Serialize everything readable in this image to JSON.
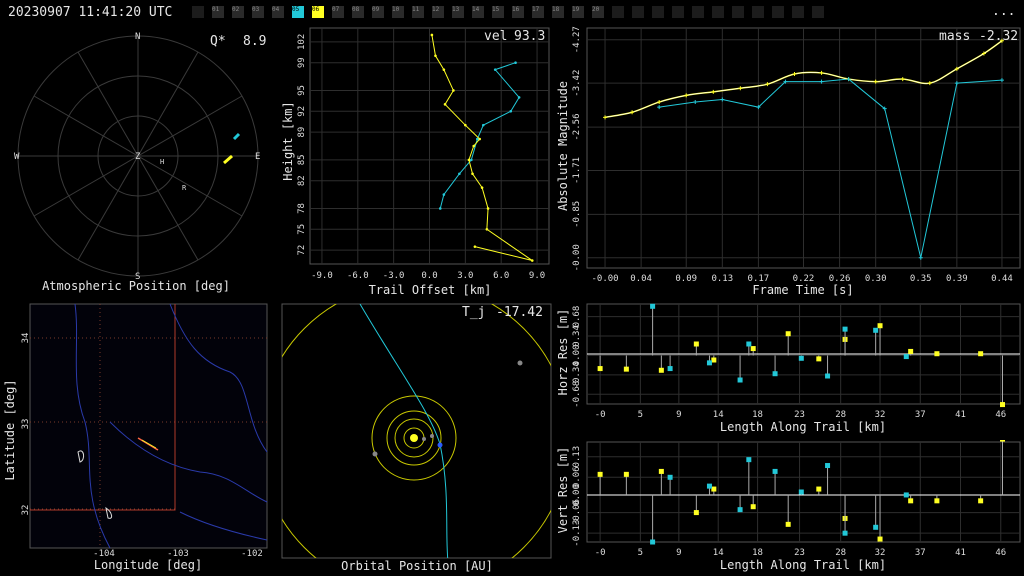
{
  "header": {
    "timestamp": "20230907 11:41:20 UTC",
    "menu": "...",
    "cameras": [
      {
        "label": "",
        "state": "dark"
      },
      {
        "label": "01",
        "state": "off"
      },
      {
        "label": "02",
        "state": "off"
      },
      {
        "label": "03",
        "state": "off"
      },
      {
        "label": "04",
        "state": "off"
      },
      {
        "label": "05",
        "state": "cyan"
      },
      {
        "label": "06",
        "state": "yellow"
      },
      {
        "label": "07",
        "state": "off"
      },
      {
        "label": "08",
        "state": "off"
      },
      {
        "label": "09",
        "state": "off"
      },
      {
        "label": "10",
        "state": "off"
      },
      {
        "label": "11",
        "state": "off"
      },
      {
        "label": "12",
        "state": "off"
      },
      {
        "label": "13",
        "state": "off"
      },
      {
        "label": "14",
        "state": "off"
      },
      {
        "label": "15",
        "state": "off"
      },
      {
        "label": "16",
        "state": "off"
      },
      {
        "label": "17",
        "state": "off"
      },
      {
        "label": "18",
        "state": "off"
      },
      {
        "label": "19",
        "state": "off"
      },
      {
        "label": "20",
        "state": "off"
      },
      {
        "label": "",
        "state": "dark"
      },
      {
        "label": "",
        "state": "dark"
      },
      {
        "label": "",
        "state": "dark"
      },
      {
        "label": "",
        "state": "dark"
      },
      {
        "label": "",
        "state": "dark"
      },
      {
        "label": "",
        "state": "dark"
      },
      {
        "label": "",
        "state": "dark"
      },
      {
        "label": "",
        "state": "dark"
      },
      {
        "label": "",
        "state": "dark"
      },
      {
        "label": "",
        "state": "dark"
      },
      {
        "label": "",
        "state": "dark"
      }
    ]
  },
  "colors": {
    "cyan": "#22c8d8",
    "yellow": "#ffff22",
    "blue": "#2a5cff",
    "grid": "#3a3a3a"
  },
  "atmos": {
    "label": "Atmospheric Position [deg]",
    "q_label": "Q*",
    "q_value": "8.9",
    "compass": {
      "n": "N",
      "s": "S",
      "e": "E",
      "w": "W",
      "z": "Z"
    },
    "markers": {
      "h": "H",
      "r": "R"
    }
  },
  "height_plot": {
    "ylabel": "Height [km]",
    "xlabel": "Trail Offset [km]",
    "stat_label": "vel",
    "stat_value": "93.3",
    "yticks": [
      "72",
      "75",
      "78",
      "82",
      "85",
      "89",
      "92",
      "95",
      "99",
      "102"
    ],
    "xticks": [
      "-9.0",
      "-6.0",
      "-3.0",
      "0.0",
      "3.0",
      "6.0",
      "9.0"
    ]
  },
  "mag_plot": {
    "ylabel": "Absolute Magnitude",
    "xlabel": "Frame Time [s]",
    "stat_label": "mass",
    "stat_value": "-2.32",
    "yticks": [
      "-4.27",
      "-3.42",
      "-2.56",
      "-1.71",
      "-0.85",
      "-0.00"
    ],
    "xticks": [
      "-0.00",
      "0.04",
      "0.09",
      "0.13",
      "0.17",
      "0.22",
      "0.26",
      "0.30",
      "0.35",
      "0.39",
      "0.44"
    ]
  },
  "map_plot": {
    "ylabel": "Latitude [deg]",
    "xlabel": "Longitude [deg]",
    "yticks": [
      "34",
      "33",
      "32"
    ],
    "xticks": [
      "-104",
      "-103",
      "-102"
    ]
  },
  "orbit_plot": {
    "xlabel": "Orbital Position [AU]",
    "stat_label": "T_j",
    "stat_value": "-17.42"
  },
  "horz_res": {
    "ylabel": "Horz Res [m]",
    "xlabel": "Length Along Trail [km]",
    "yticks": [
      "0.68",
      "0.34",
      "0.00",
      "-0.34",
      "-0.68"
    ],
    "xticks": [
      "-0",
      "5",
      "9",
      "14",
      "18",
      "23",
      "28",
      "32",
      "37",
      "41",
      "46"
    ]
  },
  "vert_res": {
    "ylabel": "Vert Res [m]",
    "xlabel": "Length Along Trail [km]",
    "yticks": [
      "0.13",
      "0.06",
      "0.00",
      "-0.06",
      "-0.13"
    ],
    "xticks": [
      "-0",
      "5",
      "9",
      "14",
      "18",
      "23",
      "28",
      "32",
      "37",
      "41",
      "46"
    ]
  },
  "chart_data": [
    {
      "type": "line",
      "name": "height_vs_offset",
      "xlabel": "Trail Offset [km]",
      "ylabel": "Height [km]",
      "xlim": [
        -10,
        10
      ],
      "ylim": [
        70,
        104
      ],
      "series": [
        {
          "color": "yellow",
          "x": [
            0.2,
            0.5,
            1.2,
            2.0,
            1.3,
            3.0,
            4.2,
            3.7,
            3.3,
            3.6,
            4.4,
            4.9,
            4.8,
            8.6,
            3.8
          ],
          "y": [
            103,
            100,
            98,
            95,
            93,
            90,
            88,
            87,
            85,
            83,
            81,
            78,
            75,
            70.5,
            72.5
          ]
        },
        {
          "color": "cyan",
          "x": [
            7.2,
            5.5,
            7.5,
            6.8,
            4.5,
            4.0,
            3.5,
            2.5,
            1.2,
            0.9
          ],
          "y": [
            99,
            98,
            94,
            92,
            90,
            88,
            85,
            83,
            80,
            78
          ]
        }
      ]
    },
    {
      "type": "line",
      "name": "magnitude_vs_time",
      "xlabel": "Frame Time [s]",
      "ylabel": "Absolute Magnitude",
      "xlim": [
        -0.02,
        0.46
      ],
      "ylim": [
        0.2,
        -4.5
      ],
      "series": [
        {
          "color": "yellow",
          "x": [
            0.0,
            0.03,
            0.06,
            0.09,
            0.12,
            0.15,
            0.18,
            0.21,
            0.24,
            0.27,
            0.3,
            0.33,
            0.36,
            0.39,
            0.42,
            0.44
          ],
          "y": [
            -2.75,
            -2.85,
            -3.05,
            -3.18,
            -3.25,
            -3.32,
            -3.4,
            -3.6,
            -3.62,
            -3.5,
            -3.45,
            -3.5,
            -3.42,
            -3.7,
            -4.0,
            -4.25
          ]
        },
        {
          "color": "cyan",
          "x": [
            0.06,
            0.1,
            0.13,
            0.17,
            0.2,
            0.24,
            0.27,
            0.31,
            0.35,
            0.39,
            0.44
          ],
          "y": [
            -2.95,
            -3.05,
            -3.1,
            -2.95,
            -3.45,
            -3.45,
            -3.5,
            -2.92,
            0.0,
            -3.42,
            -3.48
          ]
        }
      ]
    },
    {
      "type": "scatter",
      "name": "horizontal_residuals",
      "xlabel": "Length Along Trail [km]",
      "ylabel": "Horz Res [m]",
      "xlim": [
        -1.5,
        48
      ],
      "ylim": [
        -0.85,
        0.9
      ],
      "series": [
        {
          "color": "yellow",
          "x": [
            0,
            3,
            7,
            11,
            13,
            17.5,
            21.5,
            25,
            28,
            32,
            35.5,
            38.5,
            43.5,
            46
          ],
          "y": [
            -0.23,
            -0.24,
            -0.26,
            0.2,
            -0.08,
            0.12,
            0.38,
            -0.06,
            0.28,
            0.52,
            0.07,
            0.03,
            0.03,
            -0.86
          ]
        },
        {
          "color": "cyan",
          "x": [
            6,
            8,
            12.5,
            16,
            17,
            20,
            23,
            26,
            28,
            31.5,
            35
          ],
          "y": [
            0.86,
            -0.23,
            -0.13,
            -0.43,
            0.2,
            -0.32,
            -0.05,
            -0.36,
            0.46,
            0.44,
            -0.02
          ]
        }
      ]
    },
    {
      "type": "scatter",
      "name": "vertical_residuals",
      "xlabel": "Length Along Trail [km]",
      "ylabel": "Vert Res [m]",
      "xlim": [
        -1.5,
        48
      ],
      "ylim": [
        -0.16,
        0.18
      ],
      "series": [
        {
          "color": "yellow",
          "x": [
            0,
            3,
            7,
            11,
            13,
            17.5,
            21.5,
            25,
            28,
            32,
            35.5,
            38.5,
            43.5,
            46
          ],
          "y": [
            0.07,
            0.07,
            0.08,
            -0.06,
            0.02,
            -0.04,
            -0.1,
            0.02,
            -0.08,
            -0.15,
            -0.02,
            -0.02,
            -0.02,
            0.19
          ]
        },
        {
          "color": "cyan",
          "x": [
            6,
            8,
            12.5,
            16,
            17,
            20,
            23,
            26,
            28,
            31.5,
            35
          ],
          "y": [
            -0.16,
            0.06,
            0.03,
            -0.05,
            0.12,
            0.08,
            0.01,
            0.1,
            -0.13,
            -0.11,
            0.0
          ]
        }
      ]
    }
  ]
}
